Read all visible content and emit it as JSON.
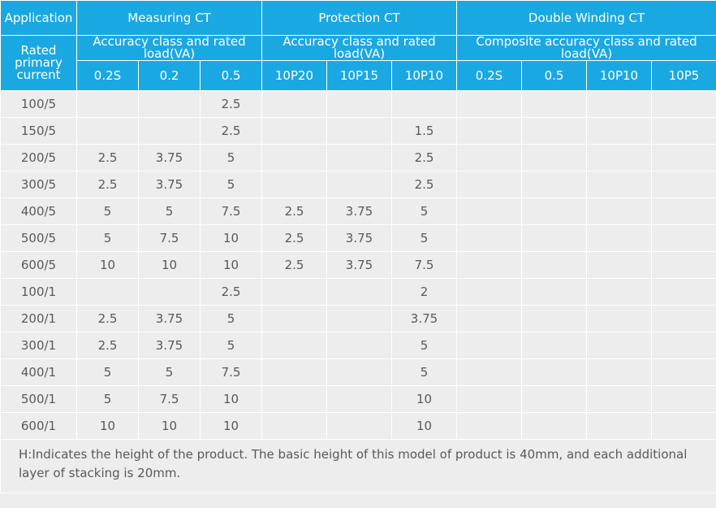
{
  "headers": {
    "application": "Application",
    "measuring_ct": "Measuring CT",
    "protection_ct": "Protection CT",
    "double_winding_ct": "Double Winding CT",
    "rated_primary_current": "Rated primary current",
    "measuring_sub": "Accuracy class and rated load(VA)",
    "protection_sub": "Accuracy class and rated load(VA)",
    "double_sub": "Composite accuracy class and rated load(VA)",
    "classes": [
      "0.2S",
      "0.2",
      "0.5",
      "10P20",
      "10P15",
      "10P10",
      "0.2S",
      "0.5",
      "10P10",
      "10P5"
    ]
  },
  "rows": [
    {
      "current": "100/5",
      "values": [
        "",
        "",
        "2.5",
        "",
        "",
        "",
        "",
        "",
        "",
        ""
      ]
    },
    {
      "current": "150/5",
      "values": [
        "",
        "",
        "2.5",
        "",
        "",
        "1.5",
        "",
        "",
        "",
        ""
      ]
    },
    {
      "current": "200/5",
      "values": [
        "2.5",
        "3.75",
        "5",
        "",
        "",
        "2.5",
        "",
        "",
        "",
        ""
      ]
    },
    {
      "current": "300/5",
      "values": [
        "2.5",
        "3.75",
        "5",
        "",
        "",
        "2.5",
        "",
        "",
        "",
        ""
      ]
    },
    {
      "current": "400/5",
      "values": [
        "5",
        "5",
        "7.5",
        "2.5",
        "3.75",
        "5",
        "",
        "",
        "",
        ""
      ]
    },
    {
      "current": "500/5",
      "values": [
        "5",
        "7.5",
        "10",
        "2.5",
        "3.75",
        "5",
        "",
        "",
        "",
        ""
      ]
    },
    {
      "current": "600/5",
      "values": [
        "10",
        "10",
        "10",
        "2.5",
        "3.75",
        "7.5",
        "",
        "",
        "",
        ""
      ]
    },
    {
      "current": "100/1",
      "values": [
        "",
        "",
        "2.5",
        "",
        "",
        "2",
        "",
        "",
        "",
        ""
      ]
    },
    {
      "current": "200/1",
      "values": [
        "2.5",
        "3.75",
        "5",
        "",
        "",
        "3.75",
        "",
        "",
        "",
        ""
      ]
    },
    {
      "current": "300/1",
      "values": [
        "2.5",
        "3.75",
        "5",
        "",
        "",
        "5",
        "",
        "",
        "",
        ""
      ]
    },
    {
      "current": "400/1",
      "values": [
        "5",
        "5",
        "7.5",
        "",
        "",
        "5",
        "",
        "",
        "",
        ""
      ]
    },
    {
      "current": "500/1",
      "values": [
        "5",
        "7.5",
        "10",
        "",
        "",
        "10",
        "",
        "",
        "",
        ""
      ]
    },
    {
      "current": "600/1",
      "values": [
        "10",
        "10",
        "10",
        "",
        "",
        "10",
        "",
        "",
        "",
        ""
      ]
    }
  ],
  "note": "H:Indicates the height of the product. The basic height of this model of product is 40mm, and each additional layer of stacking is 20mm.",
  "colors": {
    "header_bg": "#1aa8e3",
    "header_text": "#ffffff",
    "body_bg": "#ededed",
    "body_text": "#595959"
  }
}
